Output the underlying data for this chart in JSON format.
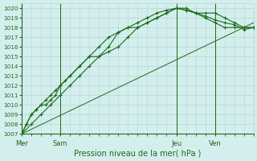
{
  "title": "Pression niveau de la mer( hPa )",
  "ylim": [
    1007,
    1020.5
  ],
  "xlim": [
    0,
    48
  ],
  "yticks": [
    1007,
    1008,
    1009,
    1010,
    1011,
    1012,
    1013,
    1014,
    1015,
    1016,
    1017,
    1018,
    1019,
    1020
  ],
  "day_labels": [
    "Mer",
    "Sam",
    "Jeu",
    "Ven"
  ],
  "day_positions": [
    0,
    8,
    32,
    40
  ],
  "background_color": "#d4eeed",
  "grid_color": "#b0d8d5",
  "line_color": "#1a6b1a",
  "text_color": "#1a6b1a",
  "series": {
    "line1_x": [
      0,
      1,
      2,
      3,
      4,
      5,
      6,
      7,
      8,
      9,
      10,
      12,
      14,
      16,
      18,
      20,
      22,
      24,
      26,
      28,
      30,
      32,
      34,
      36,
      38,
      40,
      42,
      44,
      46,
      48
    ],
    "line1_y": [
      1007.0,
      1008.0,
      1009.0,
      1009.5,
      1010.0,
      1010.0,
      1010.5,
      1011.0,
      1012.0,
      1012.5,
      1013.0,
      1014.0,
      1015.0,
      1015.0,
      1016.0,
      1017.5,
      1018.0,
      1018.0,
      1018.5,
      1019.0,
      1019.5,
      1020.0,
      1020.0,
      1019.5,
      1019.0,
      1018.5,
      1018.0,
      1018.0,
      1018.0,
      1018.0
    ],
    "line2_x": [
      0,
      1,
      2,
      3,
      4,
      5,
      6,
      7,
      8,
      10,
      12,
      14,
      16,
      18,
      20,
      22,
      24,
      26,
      28,
      30,
      32,
      34,
      36,
      38,
      40,
      42,
      44,
      46,
      48
    ],
    "line2_y": [
      1007.0,
      1008.0,
      1009.0,
      1009.5,
      1010.0,
      1010.5,
      1011.0,
      1011.5,
      1012.0,
      1013.0,
      1014.0,
      1015.0,
      1016.0,
      1017.0,
      1017.5,
      1018.0,
      1018.5,
      1019.0,
      1019.5,
      1019.8,
      1020.0,
      1019.8,
      1019.5,
      1019.5,
      1019.5,
      1019.0,
      1018.5,
      1018.0,
      1018.0
    ],
    "line3_x": [
      0,
      2,
      4,
      6,
      8,
      10,
      12,
      14,
      16,
      18,
      20,
      22,
      24,
      26,
      28,
      30,
      32,
      34,
      36,
      38,
      40,
      42,
      44,
      46,
      48
    ],
    "line3_y": [
      1007.0,
      1008.0,
      1009.0,
      1010.0,
      1011.0,
      1012.0,
      1013.0,
      1014.0,
      1015.0,
      1015.5,
      1016.0,
      1017.0,
      1018.0,
      1018.5,
      1019.0,
      1019.5,
      1020.0,
      1019.8,
      1019.5,
      1019.2,
      1018.8,
      1018.5,
      1018.3,
      1017.8,
      1018.0
    ],
    "line4_x": [
      0,
      48
    ],
    "line4_y": [
      1007.0,
      1018.5
    ]
  },
  "total_points": 49
}
